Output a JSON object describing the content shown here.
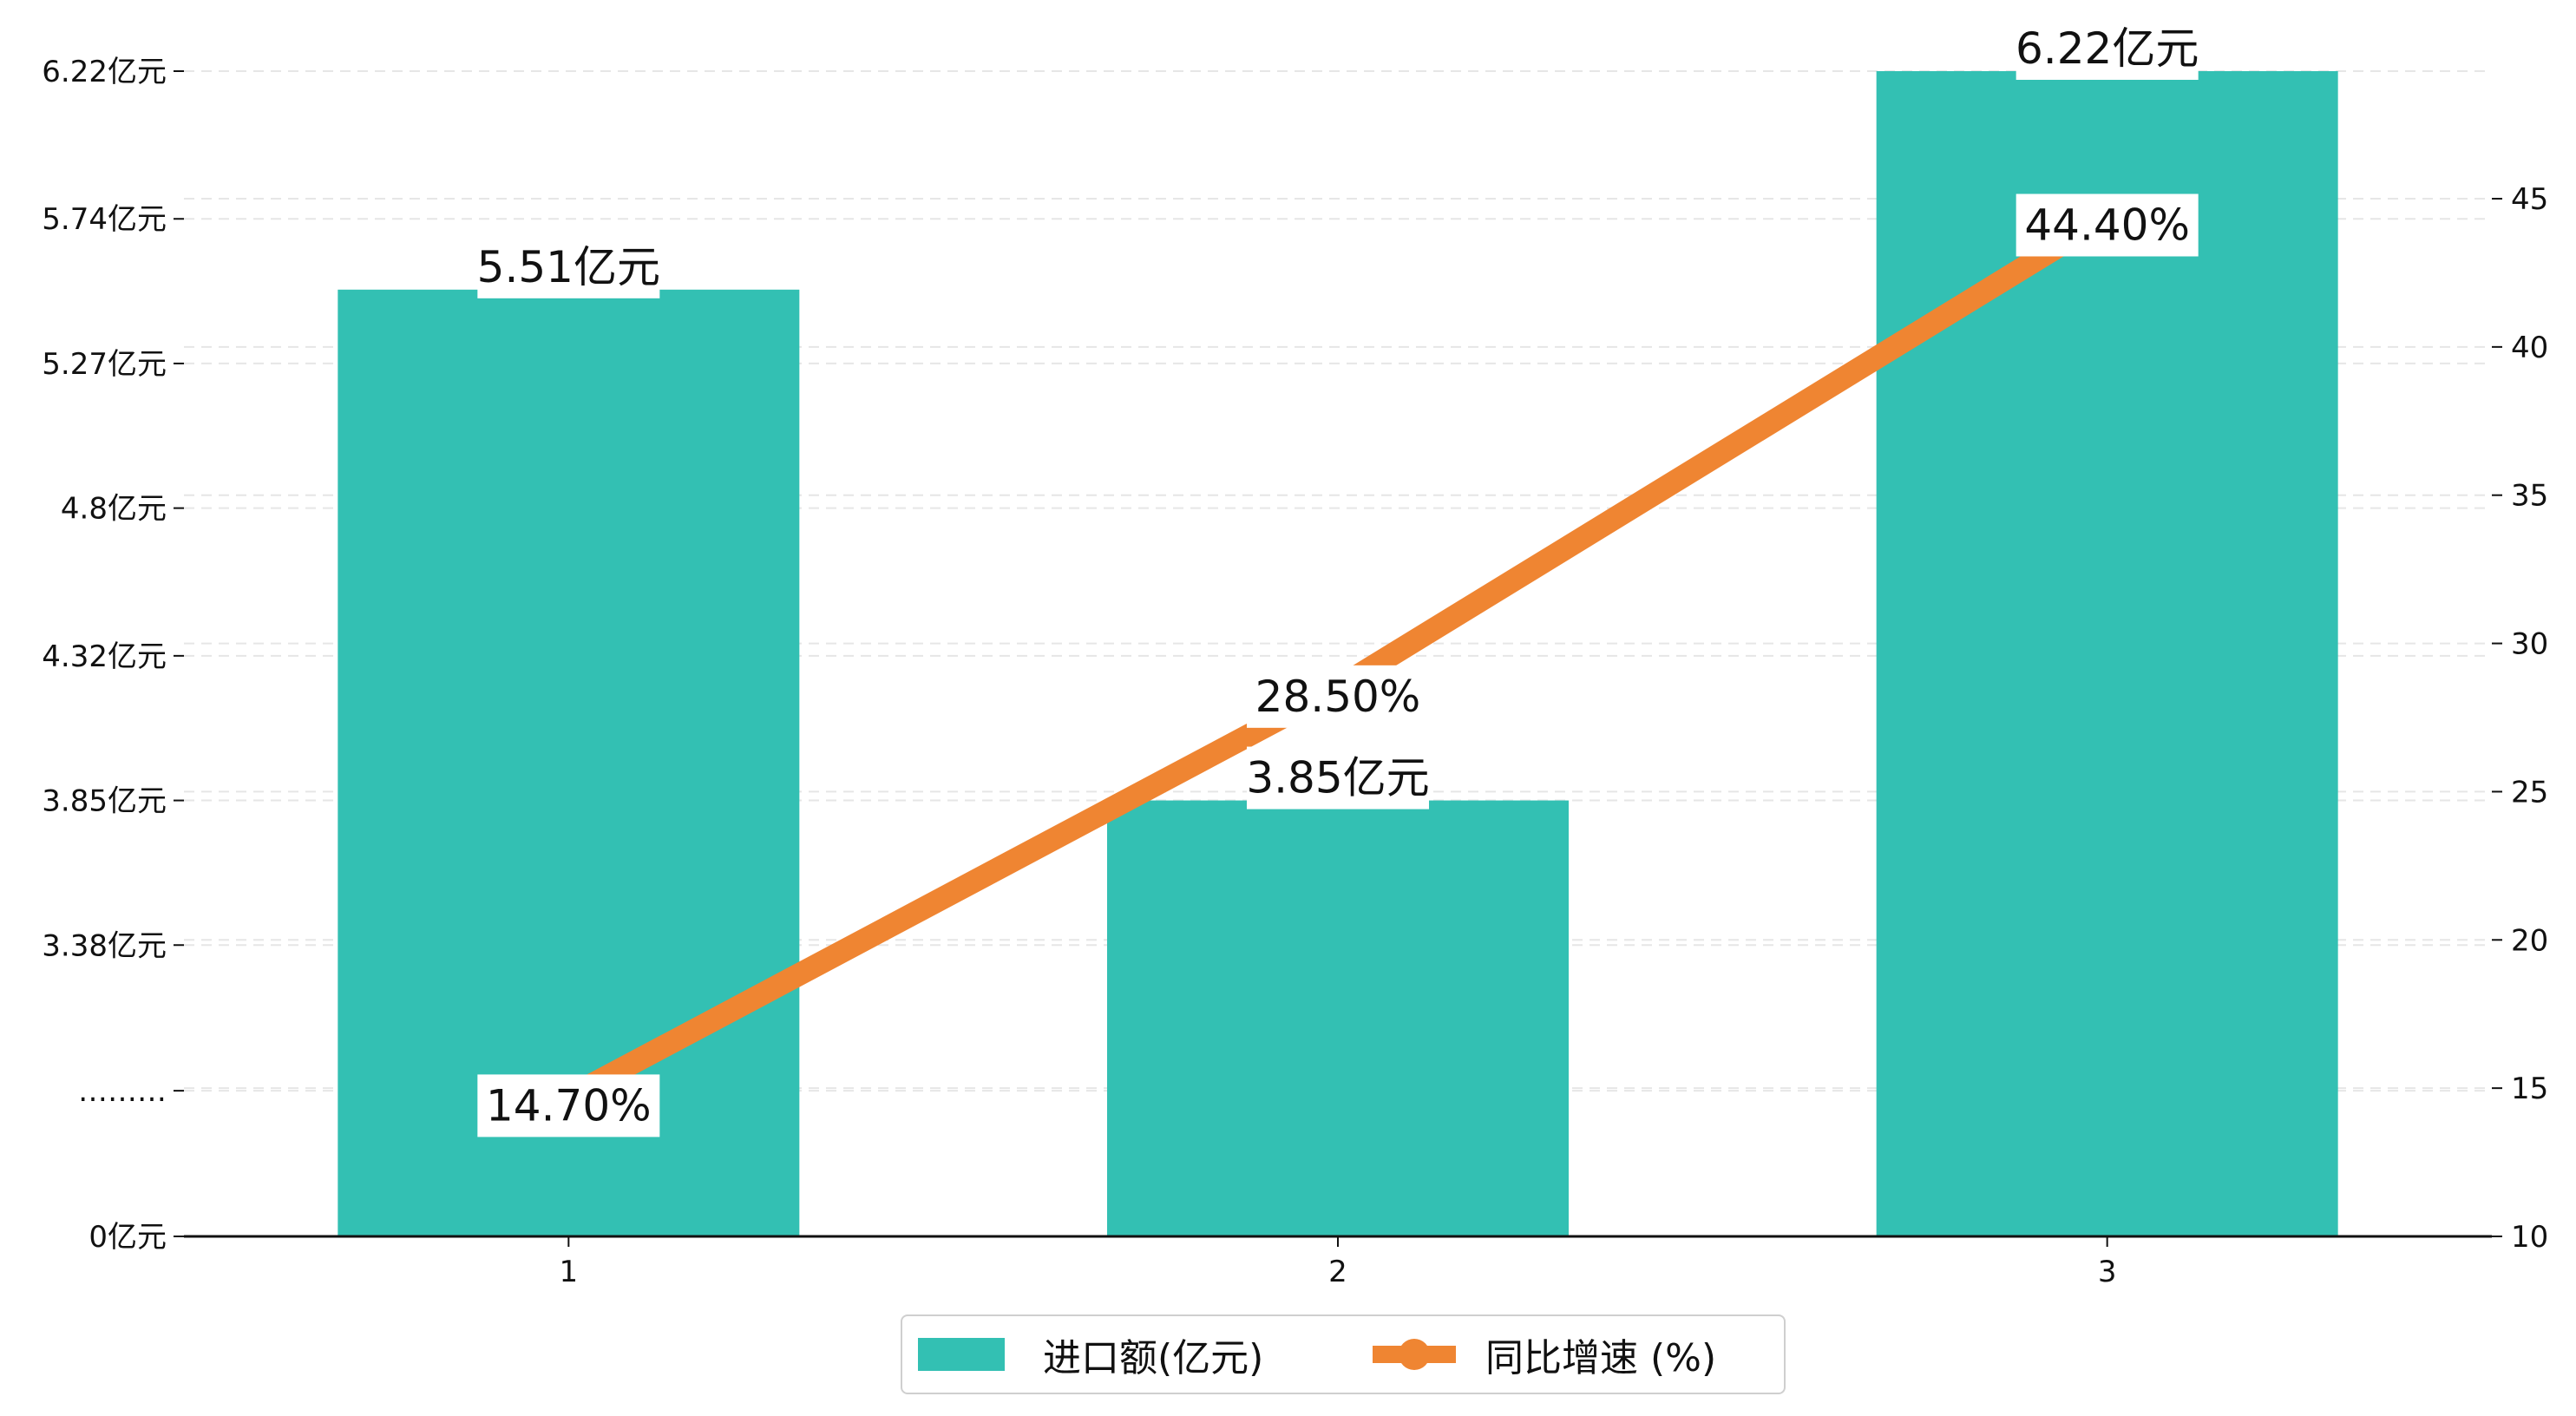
{
  "colors": {
    "bar": "#33c0b3",
    "line": "#ef8532",
    "grid": "#e6e6e6",
    "axis": "#111111"
  },
  "chart_data": {
    "type": "bar+line",
    "categories": [
      "1",
      "2",
      "3"
    ],
    "series": [
      {
        "name": "进口额(亿元)",
        "type": "bar",
        "axis": "left",
        "values": [
          5.51,
          3.85,
          6.22
        ],
        "labels": [
          "5.51亿元",
          "3.85亿元",
          "6.22亿元"
        ]
      },
      {
        "name": "同比增速 (%)",
        "type": "line",
        "axis": "right",
        "values": [
          14.7,
          28.5,
          44.4
        ],
        "labels": [
          "14.70%",
          "28.50%",
          "44.40%"
        ]
      }
    ],
    "left_axis": {
      "scale": "broken",
      "ticks": [
        {
          "value": 0,
          "label": "0亿元"
        },
        {
          "value": null,
          "label": "………"
        },
        {
          "value": 3.38,
          "label": "3.38亿元"
        },
        {
          "value": 3.85,
          "label": "3.85亿元"
        },
        {
          "value": 4.32,
          "label": "4.32亿元"
        },
        {
          "value": 4.8,
          "label": "4.8亿元"
        },
        {
          "value": 5.27,
          "label": "5.27亿元"
        },
        {
          "value": 5.74,
          "label": "5.74亿元"
        },
        {
          "value": 6.22,
          "label": "6.22亿元"
        }
      ]
    },
    "right_axis": {
      "ylim": [
        10,
        50
      ],
      "ticks": [
        {
          "value": 10,
          "label": "10"
        },
        {
          "value": 15,
          "label": "15"
        },
        {
          "value": 20,
          "label": "20"
        },
        {
          "value": 25,
          "label": "25"
        },
        {
          "value": 30,
          "label": "30"
        },
        {
          "value": 35,
          "label": "35"
        },
        {
          "value": 40,
          "label": "40"
        },
        {
          "value": 45,
          "label": "45"
        }
      ]
    },
    "grid": true,
    "legend_position": "bottom-center"
  }
}
